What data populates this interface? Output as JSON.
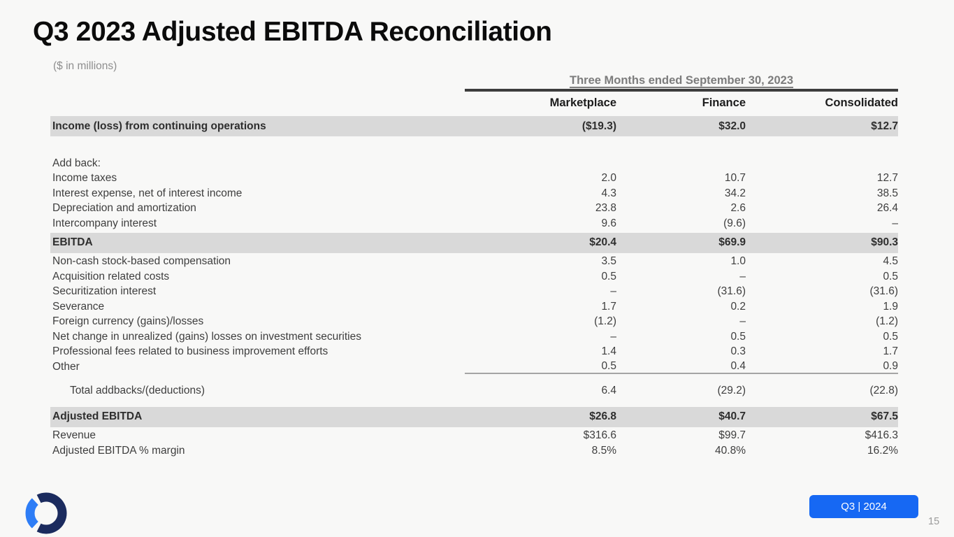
{
  "slide": {
    "title": "Q3 2023 Adjusted EBITDA Reconciliation",
    "subtitle": "($ in millions)",
    "badge_label": "Q3 | 2024",
    "page_number": "15"
  },
  "table": {
    "span_header": "Three Months ended September 30, 2023",
    "columns": [
      "Marketplace",
      "Finance",
      "Consolidated"
    ],
    "rows": [
      {
        "type": "highlight",
        "label": "Income (loss) from continuing operations",
        "values": [
          "($19.3)",
          "$32.0",
          "$12.7"
        ]
      },
      {
        "type": "spacer",
        "label": "",
        "values": [
          "",
          "",
          ""
        ]
      },
      {
        "type": "data",
        "label": "Add back:",
        "values": [
          "",
          "",
          ""
        ]
      },
      {
        "type": "data",
        "label": "Income taxes",
        "values": [
          "2.0",
          "10.7",
          "12.7"
        ]
      },
      {
        "type": "data",
        "label": "Interest expense, net of interest income",
        "values": [
          "4.3",
          "34.2",
          "38.5"
        ]
      },
      {
        "type": "data",
        "label": "Depreciation and amortization",
        "values": [
          "23.8",
          "2.6",
          "26.4"
        ]
      },
      {
        "type": "data",
        "label": "Intercompany interest",
        "values": [
          "9.6",
          "(9.6)",
          "–"
        ]
      },
      {
        "type": "highlight",
        "label": "EBITDA",
        "values": [
          "$20.4",
          "$69.9",
          "$90.3"
        ]
      },
      {
        "type": "data",
        "label": "Non-cash stock-based compensation",
        "values": [
          "3.5",
          "1.0",
          "4.5"
        ]
      },
      {
        "type": "data",
        "label": "Acquisition related costs",
        "values": [
          "0.5",
          "–",
          "0.5"
        ]
      },
      {
        "type": "data",
        "label": "Securitization interest",
        "values": [
          "–",
          "(31.6)",
          "(31.6)"
        ]
      },
      {
        "type": "data",
        "label": "Severance",
        "values": [
          "1.7",
          "0.2",
          "1.9"
        ]
      },
      {
        "type": "data",
        "label": "Foreign currency (gains)/losses",
        "values": [
          "(1.2)",
          "–",
          "(1.2)"
        ]
      },
      {
        "type": "data",
        "label": "Net change in unrealized (gains) losses on investment securities",
        "values": [
          "–",
          "0.5",
          "0.5"
        ]
      },
      {
        "type": "data",
        "label": "Professional fees related to business improvement efforts",
        "values": [
          "1.4",
          "0.3",
          "1.7"
        ]
      },
      {
        "type": "rule",
        "label": "Other",
        "values": [
          "0.5",
          "0.4",
          "0.9"
        ]
      },
      {
        "type": "total",
        "label": "Total addbacks/(deductions)",
        "values": [
          "6.4",
          "(29.2)",
          "(22.8)"
        ]
      },
      {
        "type": "highlight-gap",
        "label": "Adjusted EBITDA",
        "values": [
          "$26.8",
          "$40.7",
          "$67.5"
        ]
      },
      {
        "type": "data",
        "label": "Revenue",
        "values": [
          "$316.6",
          "$99.7",
          "$416.3"
        ]
      },
      {
        "type": "data",
        "label": "Adjusted EBITDA % margin",
        "values": [
          "8.5%",
          "40.8%",
          "16.2%"
        ]
      }
    ]
  },
  "colors": {
    "accent_blue": "#1668f3",
    "highlight_gray": "#d9d9d9",
    "rule_dark": "#3d3d3d",
    "logo_navy": "#1b2b5e",
    "logo_blue": "#2e7df6"
  }
}
